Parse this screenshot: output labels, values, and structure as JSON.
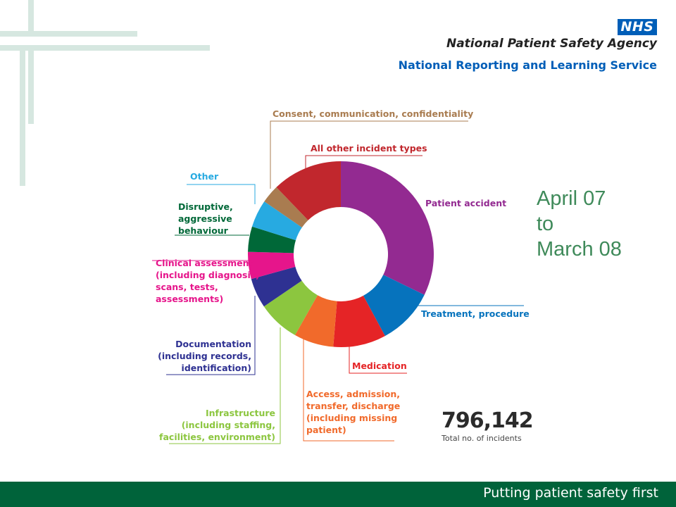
{
  "header": {
    "logo": "NHS",
    "agency": "National Patient Safety Agency",
    "service": "National Reporting and Learning Service"
  },
  "date_range": [
    "April 07",
    "to",
    "March 08"
  ],
  "total": {
    "value": "796,142",
    "label": "Total no. of incidents"
  },
  "footer": {
    "slogan": "Putting patient safety first"
  },
  "chart_data": {
    "type": "pie",
    "style": "donut",
    "title": "",
    "slices": [
      {
        "label": [
          "Patient accident"
        ],
        "value": 32.2,
        "color": "#932a91"
      },
      {
        "label": [
          "Treatment, procedure"
        ],
        "value": 9.9,
        "color": "#0673bd"
      },
      {
        "label": [
          "Medication"
        ],
        "value": 9.2,
        "color": "#e52426"
      },
      {
        "label": [
          "Access, admission,",
          "transfer, discharge",
          "(including missing",
          "patient)"
        ],
        "value": 6.9,
        "color": "#f16a2b"
      },
      {
        "label": [
          "Infrastructure",
          "(including staffing,",
          "facilities, environment)"
        ],
        "value": 7.3,
        "color": "#8cc63f"
      },
      {
        "label": [
          "Documentation",
          "(including records,",
          "identification)"
        ],
        "value": 5.2,
        "color": "#2e3192"
      },
      {
        "label": [
          "Clinical assessment",
          "(including diagnosis,",
          "scans, tests,",
          "assessments)"
        ],
        "value": 4.7,
        "color": "#e6158b"
      },
      {
        "label": [
          "Disruptive,",
          "aggressive",
          "behaviour"
        ],
        "value": 4.4,
        "color": "#006838"
      },
      {
        "label": [
          "Other"
        ],
        "value": 4.8,
        "color": "#27aae1"
      },
      {
        "label": [
          "Consent, communication, confidentiality"
        ],
        "value": 3.2,
        "color": "#a97c50"
      },
      {
        "label": [
          "All other incident types"
        ],
        "value": 12.2,
        "color": "#c1272d"
      }
    ]
  }
}
